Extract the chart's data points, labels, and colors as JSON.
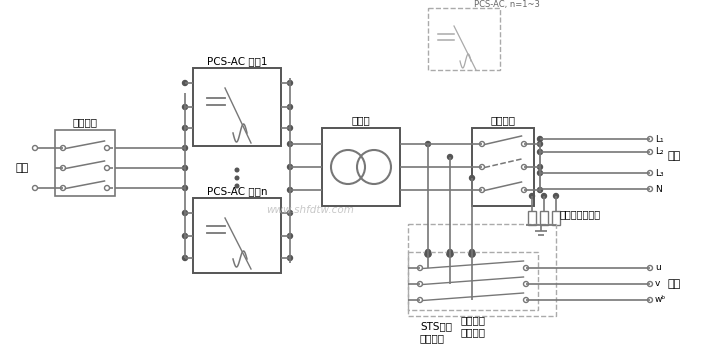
{
  "bg_color": "#ffffff",
  "line_color": "#777777",
  "text_color": "#000000",
  "watermark": "www.shfdtw.com",
  "labels": {
    "battery": "电池",
    "dc_switch": "直流开关",
    "pcs1": "PCS-AC 模块1",
    "pcsn": "PCS-AC 模块n",
    "pcs_note": "PCS-AC, n=1~3",
    "transformer": "变压器",
    "ac_switch": "交流开关",
    "load": "负载",
    "sts": "STS模块",
    "sts_opt": "（选配）",
    "ac_surge": "交流浪涌保护器",
    "ac_switch2": "交流开关",
    "ac_switch2_opt": "（选配）",
    "grid": "电网",
    "L1": "L₁",
    "L2": "L₂",
    "L3": "L₃",
    "N": "N",
    "U": "u",
    "V": "v",
    "W": "wᵇ"
  }
}
